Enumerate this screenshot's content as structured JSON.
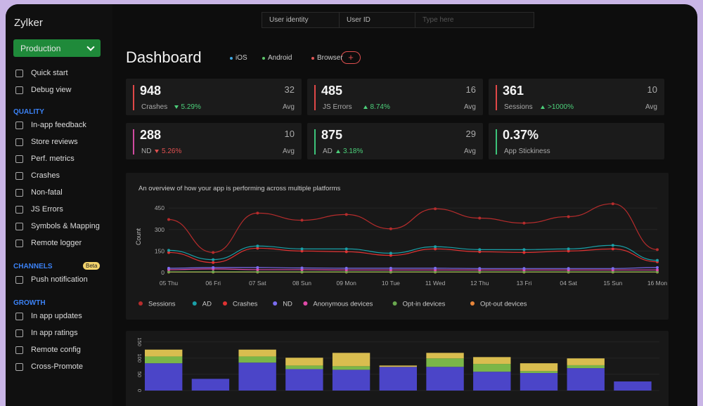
{
  "sidebar": {
    "brand": "Zylker",
    "environment": "Production",
    "top_items": [
      "Quick start",
      "Debug view"
    ],
    "sections": [
      {
        "title": "QUALITY",
        "items": [
          "In-app feedback",
          "Store reviews",
          "Perf. metrics",
          "Crashes",
          "Non-fatal",
          "JS Errors",
          "Symbols & Mapping",
          "Remote logger"
        ]
      },
      {
        "title": "CHANNELS",
        "badge": "Beta",
        "items": [
          "Push notification"
        ]
      },
      {
        "title": "GROWTH",
        "items": [
          "In app updates",
          "In app ratings",
          "Remote config",
          "Cross-Promote"
        ]
      }
    ]
  },
  "filters": {
    "field": "User identity",
    "operator": "User ID",
    "placeholder": "Type here"
  },
  "header": {
    "title": "Dashboard",
    "platforms": [
      {
        "name": "iOS",
        "color": "#3fa6e0"
      },
      {
        "name": "Android",
        "color": "#5cc46a"
      },
      {
        "name": "Browser",
        "color": "#e05555"
      }
    ],
    "add_button": "+"
  },
  "cards": [
    {
      "value": "948",
      "label": "Crashes",
      "trend": "down",
      "change": "5.29%",
      "avg": "32",
      "avg_label": "Avg",
      "accent": "#e04848",
      "change_color": "#4cd07a"
    },
    {
      "value": "485",
      "label": "JS Errors",
      "trend": "up",
      "change": "8.74%",
      "avg": "16",
      "avg_label": "Avg",
      "accent": "#e04848",
      "change_color": "#4cd07a"
    },
    {
      "value": "361",
      "label": "Sessions",
      "trend": "up",
      "change": ">1000%",
      "avg": "10",
      "avg_label": "Avg",
      "accent": "#e04848",
      "change_color": "#4cd07a"
    },
    {
      "value": "288",
      "label": "ND",
      "trend": "down",
      "change": "5.26%",
      "avg": "10",
      "avg_label": "Avg",
      "accent": "#d04aa0",
      "change_color": "#e05050"
    },
    {
      "value": "875",
      "label": "AD",
      "trend": "up",
      "change": "3.18%",
      "avg": "29",
      "avg_label": "Avg",
      "accent": "#3cc47a",
      "change_color": "#4cd07a"
    },
    {
      "value": "0.37%",
      "label": "App Stickiness",
      "accent": "#3cc47a"
    }
  ],
  "chart_data": [
    {
      "type": "line",
      "subtitle": "An overview of how your app is performing across multiple platforms",
      "y_label": "Count",
      "categories": [
        "05 Thu",
        "06 Fri",
        "07 Sat",
        "08 Sun",
        "09 Mon",
        "10 Tue",
        "11 Wed",
        "12 Thu",
        "13 Fri",
        "04 Sat",
        "15 Sun",
        "16 Mon"
      ],
      "ylim": [
        0,
        500
      ],
      "yticks": [
        0,
        150,
        300,
        450
      ],
      "series": [
        {
          "name": "Sessions",
          "color": "#b62c2c",
          "values": [
            370,
            140,
            415,
            365,
            405,
            305,
            445,
            380,
            345,
            390,
            480,
            160
          ]
        },
        {
          "name": "AD",
          "color": "#1aa0a8",
          "values": [
            155,
            90,
            185,
            165,
            165,
            135,
            180,
            160,
            160,
            165,
            190,
            85
          ]
        },
        {
          "name": "Crashes",
          "color": "#e03232",
          "values": [
            140,
            70,
            170,
            150,
            145,
            120,
            165,
            145,
            140,
            150,
            165,
            75
          ]
        },
        {
          "name": "ND",
          "color": "#7b6cf0",
          "values": [
            30,
            35,
            35,
            32,
            30,
            30,
            30,
            28,
            28,
            28,
            28,
            35
          ]
        },
        {
          "name": "Anonymous devices",
          "color": "#e04aa8",
          "values": [
            20,
            25,
            20,
            20,
            18,
            18,
            18,
            18,
            18,
            18,
            18,
            18
          ]
        },
        {
          "name": "Opt-in devices",
          "color": "#6aa84f",
          "values": [
            5,
            5,
            5,
            5,
            5,
            5,
            5,
            5,
            5,
            5,
            5,
            5
          ]
        },
        {
          "name": "Opt-out devices",
          "color": "#e8863a",
          "values": [
            3,
            3,
            3,
            3,
            3,
            3,
            3,
            3,
            3,
            3,
            3,
            3
          ]
        }
      ]
    },
    {
      "type": "stacked_bar",
      "ylim": [
        0,
        160
      ],
      "yticks": [
        0,
        50,
        100,
        150
      ],
      "series": [
        {
          "color": "#4b45c8",
          "values": [
            84,
            36,
            86,
            66,
            64,
            73,
            73,
            58,
            54,
            69,
            28
          ]
        },
        {
          "color": "#7ab648",
          "values": [
            21,
            0,
            19,
            11,
            11,
            0,
            26,
            24,
            6,
            9,
            0
          ]
        },
        {
          "color": "#d9bd4f",
          "values": [
            21,
            0,
            21,
            24,
            41,
            4,
            17,
            21,
            24,
            21,
            0
          ]
        }
      ]
    }
  ]
}
